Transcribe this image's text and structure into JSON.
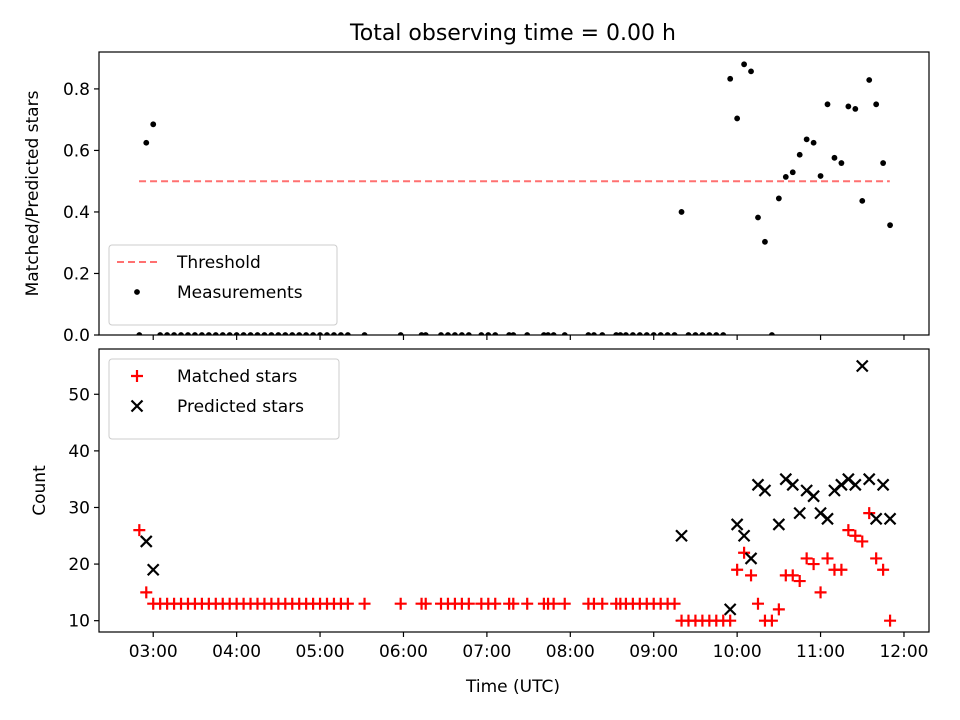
{
  "chart_data": {
    "title": "Total observing time = 0.00 h",
    "type": "scatter",
    "xlabel": "Time (UTC)",
    "x_ticks": [
      "03:00",
      "04:00",
      "05:00",
      "06:00",
      "07:00",
      "08:00",
      "09:00",
      "10:00",
      "11:00",
      "12:00"
    ],
    "x_range_hours": [
      2.35,
      12.3
    ],
    "panels": [
      {
        "ylabel": "Matched/Predicted stars",
        "ylim": [
          0,
          0.92
        ],
        "yticks": [
          0.0,
          0.2,
          0.4,
          0.6,
          0.8
        ],
        "legend_placement": "lower-left",
        "threshold": {
          "name": "Threshold",
          "value": 0.5,
          "x_range": [
            2.83,
            11.83
          ],
          "color": "#ff7070",
          "style": "dashed"
        },
        "series": [
          {
            "name": "Measurements",
            "color": "#000000",
            "marker": "dot",
            "points": [
              [
                "02:50",
                0.0
              ],
              [
                "02:55",
                0.625
              ],
              [
                "03:00",
                0.685
              ],
              [
                "03:05",
                0.0
              ],
              [
                "03:10",
                0.0
              ],
              [
                "03:15",
                0.0
              ],
              [
                "03:20",
                0.0
              ],
              [
                "03:25",
                0.0
              ],
              [
                "03:30",
                0.0
              ],
              [
                "03:35",
                0.0
              ],
              [
                "03:40",
                0.0
              ],
              [
                "03:45",
                0.0
              ],
              [
                "03:50",
                0.0
              ],
              [
                "03:55",
                0.0
              ],
              [
                "04:00",
                0.0
              ],
              [
                "04:05",
                0.0
              ],
              [
                "04:10",
                0.0
              ],
              [
                "04:15",
                0.0
              ],
              [
                "04:20",
                0.0
              ],
              [
                "04:25",
                0.0
              ],
              [
                "04:30",
                0.0
              ],
              [
                "04:35",
                0.0
              ],
              [
                "04:40",
                0.0
              ],
              [
                "04:45",
                0.0
              ],
              [
                "04:50",
                0.0
              ],
              [
                "04:55",
                0.0
              ],
              [
                "05:00",
                0.0
              ],
              [
                "05:05",
                0.0
              ],
              [
                "05:10",
                0.0
              ],
              [
                "05:15",
                0.0
              ],
              [
                "05:20",
                0.0
              ],
              [
                "05:32",
                0.0
              ],
              [
                "05:58",
                0.0
              ],
              [
                "06:13",
                0.0
              ],
              [
                "06:16",
                0.0
              ],
              [
                "06:27",
                0.0
              ],
              [
                "06:32",
                0.0
              ],
              [
                "06:37",
                0.0
              ],
              [
                "06:42",
                0.0
              ],
              [
                "06:47",
                0.0
              ],
              [
                "06:56",
                0.0
              ],
              [
                "07:01",
                0.0
              ],
              [
                "07:06",
                0.0
              ],
              [
                "07:16",
                0.0
              ],
              [
                "07:19",
                0.0
              ],
              [
                "07:29",
                0.0
              ],
              [
                "07:41",
                0.0
              ],
              [
                "07:44",
                0.0
              ],
              [
                "07:48",
                0.0
              ],
              [
                "07:56",
                0.0
              ],
              [
                "08:13",
                0.0
              ],
              [
                "08:17",
                0.0
              ],
              [
                "08:23",
                0.0
              ],
              [
                "08:33",
                0.0
              ],
              [
                "08:36",
                0.0
              ],
              [
                "08:40",
                0.0
              ],
              [
                "08:45",
                0.0
              ],
              [
                "08:50",
                0.0
              ],
              [
                "08:55",
                0.0
              ],
              [
                "09:00",
                0.0
              ],
              [
                "09:05",
                0.0
              ],
              [
                "09:10",
                0.0
              ],
              [
                "09:15",
                0.0
              ],
              [
                "09:20",
                0.4
              ],
              [
                "09:25",
                0.0
              ],
              [
                "09:30",
                0.0
              ],
              [
                "09:35",
                0.0
              ],
              [
                "09:40",
                0.0
              ],
              [
                "09:45",
                0.0
              ],
              [
                "09:50",
                0.0
              ],
              [
                "09:55",
                0.833
              ],
              [
                "10:00",
                0.704
              ],
              [
                "10:05",
                0.88
              ],
              [
                "10:10",
                0.857
              ],
              [
                "10:15",
                0.382
              ],
              [
                "10:20",
                0.303
              ],
              [
                "10:25",
                0.0
              ],
              [
                "10:30",
                0.444
              ],
              [
                "10:35",
                0.514
              ],
              [
                "10:40",
                0.529
              ],
              [
                "10:45",
                0.586
              ],
              [
                "10:50",
                0.636
              ],
              [
                "10:55",
                0.625
              ],
              [
                "11:00",
                0.517
              ],
              [
                "11:05",
                0.75
              ],
              [
                "11:10",
                0.576
              ],
              [
                "11:15",
                0.559
              ],
              [
                "11:20",
                0.743
              ],
              [
                "11:25",
                0.735
              ],
              [
                "11:30",
                0.436
              ],
              [
                "11:35",
                0.829
              ],
              [
                "11:40",
                0.75
              ],
              [
                "11:45",
                0.559
              ],
              [
                "11:50",
                0.357
              ]
            ]
          }
        ]
      },
      {
        "ylabel": "Count",
        "ylim": [
          8,
          58
        ],
        "yticks": [
          10,
          20,
          30,
          40,
          50
        ],
        "legend_placement": "upper-left",
        "series": [
          {
            "name": "Matched stars",
            "color": "#ff0000",
            "marker": "plus",
            "points": [
              [
                "02:50",
                26
              ],
              [
                "02:55",
                15
              ],
              [
                "03:00",
                13
              ],
              [
                "03:05",
                13
              ],
              [
                "03:10",
                13
              ],
              [
                "03:15",
                13
              ],
              [
                "03:20",
                13
              ],
              [
                "03:25",
                13
              ],
              [
                "03:30",
                13
              ],
              [
                "03:35",
                13
              ],
              [
                "03:40",
                13
              ],
              [
                "03:45",
                13
              ],
              [
                "03:50",
                13
              ],
              [
                "03:55",
                13
              ],
              [
                "04:00",
                13
              ],
              [
                "04:05",
                13
              ],
              [
                "04:10",
                13
              ],
              [
                "04:15",
                13
              ],
              [
                "04:20",
                13
              ],
              [
                "04:25",
                13
              ],
              [
                "04:30",
                13
              ],
              [
                "04:35",
                13
              ],
              [
                "04:40",
                13
              ],
              [
                "04:45",
                13
              ],
              [
                "04:50",
                13
              ],
              [
                "04:55",
                13
              ],
              [
                "05:00",
                13
              ],
              [
                "05:05",
                13
              ],
              [
                "05:10",
                13
              ],
              [
                "05:15",
                13
              ],
              [
                "05:20",
                13
              ],
              [
                "05:32",
                13
              ],
              [
                "05:58",
                13
              ],
              [
                "06:13",
                13
              ],
              [
                "06:16",
                13
              ],
              [
                "06:27",
                13
              ],
              [
                "06:32",
                13
              ],
              [
                "06:37",
                13
              ],
              [
                "06:42",
                13
              ],
              [
                "06:47",
                13
              ],
              [
                "06:56",
                13
              ],
              [
                "07:01",
                13
              ],
              [
                "07:06",
                13
              ],
              [
                "07:16",
                13
              ],
              [
                "07:19",
                13
              ],
              [
                "07:29",
                13
              ],
              [
                "07:41",
                13
              ],
              [
                "07:44",
                13
              ],
              [
                "07:48",
                13
              ],
              [
                "07:56",
                13
              ],
              [
                "08:13",
                13
              ],
              [
                "08:17",
                13
              ],
              [
                "08:23",
                13
              ],
              [
                "08:33",
                13
              ],
              [
                "08:36",
                13
              ],
              [
                "08:40",
                13
              ],
              [
                "08:45",
                13
              ],
              [
                "08:50",
                13
              ],
              [
                "08:55",
                13
              ],
              [
                "09:00",
                13
              ],
              [
                "09:05",
                13
              ],
              [
                "09:10",
                13
              ],
              [
                "09:15",
                13
              ],
              [
                "09:20",
                10
              ],
              [
                "09:25",
                10
              ],
              [
                "09:30",
                10
              ],
              [
                "09:35",
                10
              ],
              [
                "09:40",
                10
              ],
              [
                "09:45",
                10
              ],
              [
                "09:50",
                10
              ],
              [
                "09:55",
                10
              ],
              [
                "10:00",
                19
              ],
              [
                "10:05",
                22
              ],
              [
                "10:10",
                18
              ],
              [
                "10:15",
                13
              ],
              [
                "10:20",
                10
              ],
              [
                "10:25",
                10
              ],
              [
                "10:30",
                12
              ],
              [
                "10:35",
                18
              ],
              [
                "10:40",
                18
              ],
              [
                "10:45",
                17
              ],
              [
                "10:50",
                21
              ],
              [
                "10:55",
                20
              ],
              [
                "11:00",
                15
              ],
              [
                "11:05",
                21
              ],
              [
                "11:10",
                19
              ],
              [
                "11:15",
                19
              ],
              [
                "11:20",
                26
              ],
              [
                "11:25",
                25
              ],
              [
                "11:30",
                24
              ],
              [
                "11:35",
                29
              ],
              [
                "11:40",
                21
              ],
              [
                "11:45",
                19
              ],
              [
                "11:50",
                10
              ]
            ]
          },
          {
            "name": "Predicted stars",
            "color": "#000000",
            "marker": "x",
            "points": [
              [
                "02:55",
                24
              ],
              [
                "03:00",
                19
              ],
              [
                "09:20",
                25
              ],
              [
                "09:55",
                12
              ],
              [
                "10:00",
                27
              ],
              [
                "10:05",
                25
              ],
              [
                "10:10",
                21
              ],
              [
                "10:15",
                34
              ],
              [
                "10:20",
                33
              ],
              [
                "10:30",
                27
              ],
              [
                "10:35",
                35
              ],
              [
                "10:40",
                34
              ],
              [
                "10:45",
                29
              ],
              [
                "10:50",
                33
              ],
              [
                "10:55",
                32
              ],
              [
                "11:00",
                29
              ],
              [
                "11:05",
                28
              ],
              [
                "11:10",
                33
              ],
              [
                "11:15",
                34
              ],
              [
                "11:20",
                35
              ],
              [
                "11:25",
                34
              ],
              [
                "11:30",
                55
              ],
              [
                "11:35",
                35
              ],
              [
                "11:40",
                28
              ],
              [
                "11:45",
                34
              ],
              [
                "11:50",
                28
              ]
            ]
          }
        ]
      }
    ]
  }
}
